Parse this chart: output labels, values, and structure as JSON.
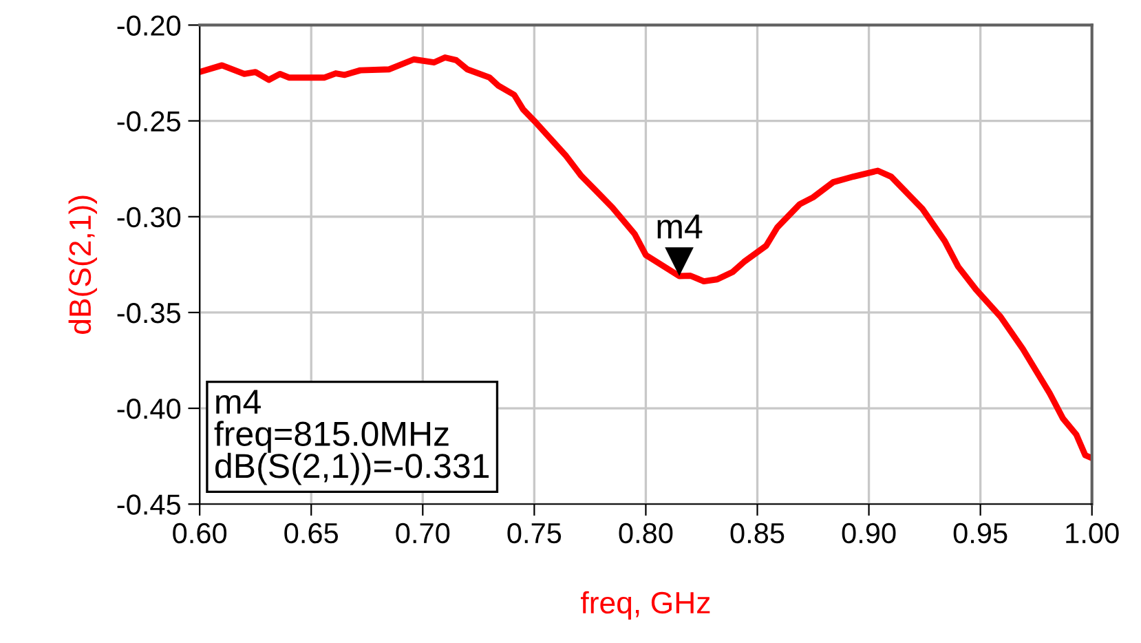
{
  "chart_data": {
    "type": "line",
    "xlabel": "freq, GHz",
    "ylabel": "dB(S(2,1))",
    "x": [
      0.6,
      0.61,
      0.62,
      0.625,
      0.631,
      0.636,
      0.64,
      0.656,
      0.661,
      0.665,
      0.672,
      0.685,
      0.696,
      0.705,
      0.71,
      0.715,
      0.72,
      0.73,
      0.734,
      0.741,
      0.745,
      0.75,
      0.764,
      0.771,
      0.777,
      0.785,
      0.795,
      0.8,
      0.815,
      0.82,
      0.826,
      0.832,
      0.839,
      0.844,
      0.854,
      0.859,
      0.869,
      0.875,
      0.884,
      0.893,
      0.904,
      0.91,
      0.924,
      0.934,
      0.94,
      0.948,
      0.959,
      0.969,
      0.981,
      0.987,
      0.993,
      0.997,
      1.0
    ],
    "series": [
      {
        "color": "#ff0000",
        "values": [
          -0.2245,
          -0.221,
          -0.2255,
          -0.2245,
          -0.2286,
          -0.2255,
          -0.2274,
          -0.2274,
          -0.2252,
          -0.226,
          -0.2236,
          -0.2231,
          -0.2179,
          -0.2195,
          -0.2169,
          -0.2183,
          -0.2231,
          -0.2274,
          -0.2317,
          -0.2364,
          -0.244,
          -0.25,
          -0.2679,
          -0.2786,
          -0.2857,
          -0.2952,
          -0.309,
          -0.32,
          -0.331,
          -0.3308,
          -0.3337,
          -0.3327,
          -0.3288,
          -0.3236,
          -0.3151,
          -0.3055,
          -0.2935,
          -0.2899,
          -0.282,
          -0.2791,
          -0.276,
          -0.2791,
          -0.2959,
          -0.3127,
          -0.326,
          -0.338,
          -0.3522,
          -0.369,
          -0.392,
          -0.4053,
          -0.4137,
          -0.4245,
          -0.426
        ]
      }
    ],
    "xlim": [
      0.6,
      1.0
    ],
    "xticks": [
      {
        "value": 0.6,
        "label": "0.60"
      },
      {
        "value": 0.65,
        "label": "0.65"
      },
      {
        "value": 0.7,
        "label": "0.70"
      },
      {
        "value": 0.75,
        "label": "0.75"
      },
      {
        "value": 0.8,
        "label": "0.80"
      },
      {
        "value": 0.85,
        "label": "0.85"
      },
      {
        "value": 0.9,
        "label": "0.90"
      },
      {
        "value": 0.95,
        "label": "0.95"
      },
      {
        "value": 1.0,
        "label": "1.00"
      }
    ],
    "ylim": [
      -0.45,
      -0.2
    ],
    "yticks": [
      {
        "value": -0.45,
        "label": "-0.45"
      },
      {
        "value": -0.4,
        "label": "-0.40"
      },
      {
        "value": -0.35,
        "label": "-0.35"
      },
      {
        "value": -0.3,
        "label": "-0.30"
      },
      {
        "value": -0.25,
        "label": "-0.25"
      },
      {
        "value": -0.2,
        "label": "-0.20"
      }
    ],
    "grid": true,
    "legend": false,
    "marker": "none",
    "line_style": "solid",
    "annotations": [
      {
        "text": "m4",
        "x": 0.815,
        "y": -0.331
      },
      "m4\nfreq=815.0MHz\ndB(S(2,1))=-0.331"
    ]
  }
}
